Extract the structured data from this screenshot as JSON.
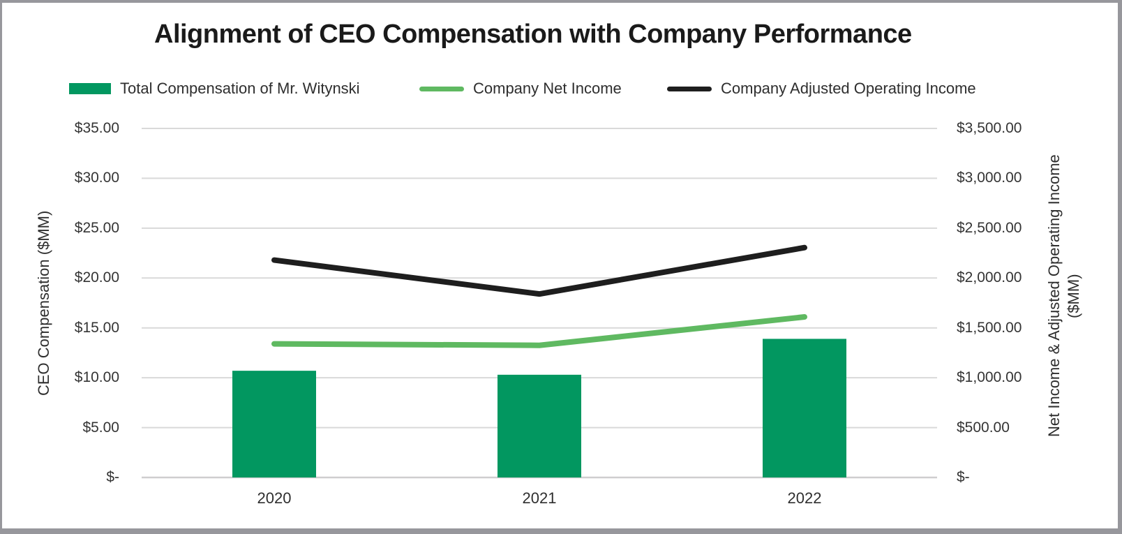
{
  "title": "Alignment of CEO Compensation with Company Performance",
  "legend": [
    {
      "label": "Total Compensation of Mr. Witynski",
      "marker": "bar-swatch",
      "color": "#029760"
    },
    {
      "label": "Company Net Income",
      "marker": "line-swatch",
      "color": "#5fb961"
    },
    {
      "label": "Company Adjusted Operating Income",
      "marker": "line-swatch",
      "color": "#1e1e1e"
    }
  ],
  "axes": {
    "left": {
      "title": "CEO Compensation ($MM)"
    },
    "right": {
      "title_line1": "Net Income & Adjusted Operating Income",
      "title_line2": "($MM)"
    }
  },
  "chart_data": {
    "type": "bar",
    "subtype": "combo-bar-line-dual-axis",
    "title": "Alignment of CEO Compensation with Company Performance",
    "categories": [
      "2020",
      "2021",
      "2022"
    ],
    "series": [
      {
        "name": "Total Compensation of Mr. Witynski",
        "type": "bar",
        "axis": "left",
        "color": "#029760",
        "values": [
          10.7,
          10.3,
          13.9
        ]
      },
      {
        "name": "Company Net Income",
        "type": "line",
        "axis": "right",
        "color": "#5fb961",
        "values": [
          1340,
          1325,
          1610
        ]
      },
      {
        "name": "Company Adjusted Operating Income",
        "type": "line",
        "axis": "right",
        "color": "#1e1e1e",
        "values": [
          2180,
          1840,
          2305
        ]
      }
    ],
    "left_axis": {
      "label": "CEO Compensation ($MM)",
      "ylim": [
        0,
        35
      ],
      "tick_step": 5,
      "ticks": [
        "$-",
        "$5.00",
        "$10.00",
        "$15.00",
        "$20.00",
        "$25.00",
        "$30.00",
        "$35.00"
      ]
    },
    "right_axis": {
      "label": "Net Income & Adjusted Operating Income ($MM)",
      "ylim": [
        0,
        3500
      ],
      "tick_step": 500,
      "ticks": [
        "$-",
        "$500.00",
        "$1,000.00",
        "$1,500.00",
        "$2,000.00",
        "$2,500.00",
        "$3,000.00",
        "$3,500.00"
      ]
    },
    "grid": true,
    "legend_position": "top",
    "colors": {
      "gridline": "#d9d9d9",
      "baseline": "#cfcecf",
      "frame_border": "#97979c",
      "title_text": "#1a1a1a",
      "tick_text": "#343434"
    }
  }
}
